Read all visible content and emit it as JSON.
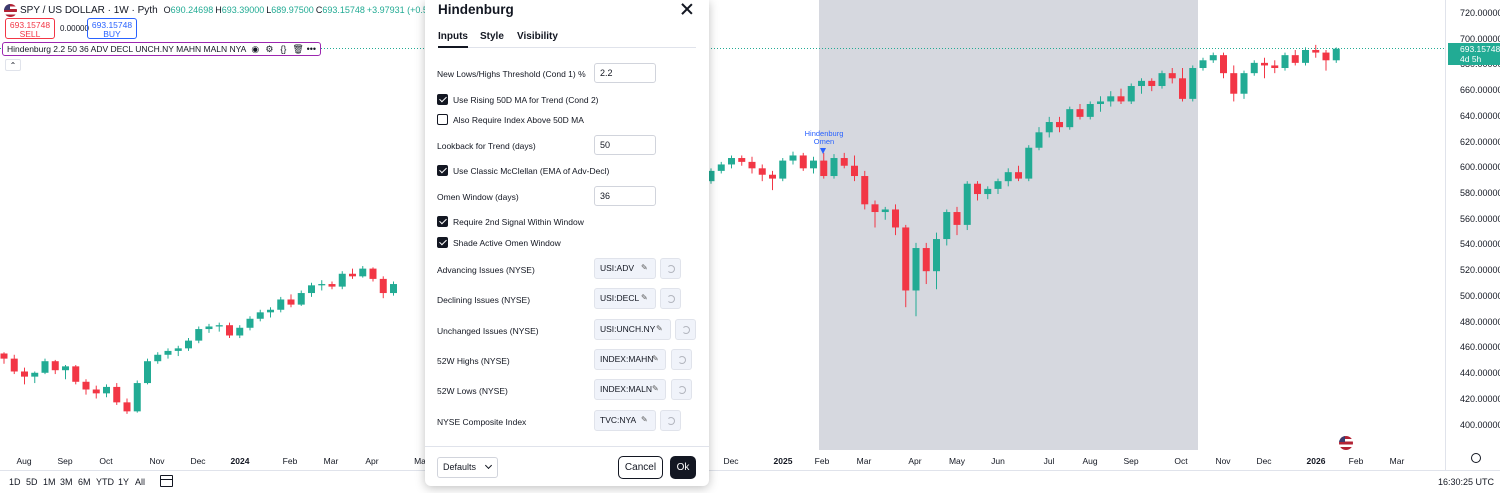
{
  "symbol": {
    "title": "SPY / US DOLLAR · 1W · Pyth",
    "open": "690.24698",
    "high": "693.39000",
    "low": "689.97500",
    "close": "693.15748",
    "change": "+3.97931 (+0.58%)"
  },
  "trade": {
    "sell_price": "693.15748",
    "sell_label": "SELL",
    "spread": "0.00000",
    "buy_price": "693.15748",
    "buy_label": "BUY"
  },
  "indicator": {
    "legend": "Hindenburg 2.2 50 36 ADV DECL UNCH.NY MAHN MALN NYA"
  },
  "annotation": {
    "omen_line1": "Hindenburg",
    "omen_line2": "Omen"
  },
  "price_scale": {
    "ticks": [
      "720.00000",
      "700.00000",
      "680.00000",
      "660.00000",
      "640.00000",
      "620.00000",
      "600.00000",
      "580.00000",
      "560.00000",
      "540.00000",
      "520.00000",
      "500.00000",
      "480.00000",
      "460.00000",
      "440.00000",
      "420.00000",
      "400.00000"
    ],
    "last_price": "693.15748",
    "countdown": "4d 5h"
  },
  "time_axis": {
    "ticks": [
      {
        "label": "Aug",
        "bold": false
      },
      {
        "label": "Sep",
        "bold": false
      },
      {
        "label": "Oct",
        "bold": false
      },
      {
        "label": "Nov",
        "bold": false
      },
      {
        "label": "Dec",
        "bold": false
      },
      {
        "label": "2024",
        "bold": true
      },
      {
        "label": "Feb",
        "bold": false
      },
      {
        "label": "Mar",
        "bold": false
      },
      {
        "label": "Apr",
        "bold": false
      },
      {
        "label": "Ma",
        "bold": false
      },
      {
        "label": "Dec",
        "bold": false
      },
      {
        "label": "2025",
        "bold": true
      },
      {
        "label": "Feb",
        "bold": false
      },
      {
        "label": "Mar",
        "bold": false
      },
      {
        "label": "Apr",
        "bold": false
      },
      {
        "label": "May",
        "bold": false
      },
      {
        "label": "Jun",
        "bold": false
      },
      {
        "label": "Jul",
        "bold": false
      },
      {
        "label": "Aug",
        "bold": false
      },
      {
        "label": "Sep",
        "bold": false
      },
      {
        "label": "Oct",
        "bold": false
      },
      {
        "label": "Nov",
        "bold": false
      },
      {
        "label": "Dec",
        "bold": false
      },
      {
        "label": "2026",
        "bold": true
      },
      {
        "label": "Feb",
        "bold": false
      },
      {
        "label": "Mar",
        "bold": false
      }
    ]
  },
  "bottom_bar": {
    "ranges": [
      "1D",
      "5D",
      "1M",
      "3M",
      "6M",
      "YTD",
      "1Y",
      "All"
    ],
    "clock": "16:30:25 UTC"
  },
  "colors": {
    "up": "#22ab94",
    "down": "#f23645",
    "shade": "#d1d4dc",
    "accent": "#2962ff"
  },
  "dialog": {
    "title": "Hindenburg",
    "tabs": [
      "Inputs",
      "Style",
      "Visibility"
    ],
    "inputs": {
      "threshold_label": "New Lows/Highs Threshold (Cond 1) %",
      "threshold_value": "2.2",
      "rising_ma_label": "Use Rising 50D MA for Trend (Cond 2)",
      "rising_ma_checked": true,
      "above_ma_label": "Also Require Index Above 50D MA",
      "above_ma_checked": false,
      "lookback_label": "Lookback for Trend (days)",
      "lookback_value": "50",
      "mcclellan_label": "Use Classic McClellan (EMA of Adv-Decl)",
      "mcclellan_checked": true,
      "omen_window_label": "Omen Window (days)",
      "omen_window_value": "36",
      "second_signal_label": "Require 2nd Signal Within Window",
      "second_signal_checked": true,
      "shade_label": "Shade Active Omen Window",
      "shade_checked": true,
      "symbols": [
        {
          "label": "Advancing Issues (NYSE)",
          "value": "USI:ADV"
        },
        {
          "label": "Declining Issues (NYSE)",
          "value": "USI:DECL"
        },
        {
          "label": "Unchanged Issues (NYSE)",
          "value": "USI:UNCH.NY"
        },
        {
          "label": "52W Highs (NYSE)",
          "value": "INDEX:MAHN"
        },
        {
          "label": "52W Lows (NYSE)",
          "value": "INDEX:MALN"
        },
        {
          "label": "NYSE Composite Index",
          "value": "TVC:NYA"
        }
      ]
    },
    "footer": {
      "defaults_label": "Defaults",
      "cancel_label": "Cancel",
      "ok_label": "Ok"
    }
  },
  "chart_data": {
    "type": "candlestick",
    "interval": "1W",
    "ylim": [
      380,
      730
    ],
    "candles": [
      [
        456,
        457,
        448,
        452
      ],
      [
        452,
        455,
        440,
        442
      ],
      [
        442,
        445,
        432,
        438
      ],
      [
        438,
        442,
        433,
        441
      ],
      [
        441,
        452,
        440,
        450
      ],
      [
        450,
        451,
        440,
        443
      ],
      [
        443,
        447,
        436,
        446
      ],
      [
        446,
        447,
        432,
        434
      ],
      [
        434,
        436,
        424,
        428
      ],
      [
        428,
        431,
        421,
        425
      ],
      [
        425,
        432,
        422,
        430
      ],
      [
        430,
        433,
        416,
        418
      ],
      [
        418,
        421,
        409,
        411
      ],
      [
        411,
        435,
        410,
        433
      ],
      [
        433,
        452,
        432,
        450
      ],
      [
        450,
        457,
        448,
        455
      ],
      [
        455,
        460,
        452,
        458
      ],
      [
        458,
        462,
        454,
        460
      ],
      [
        460,
        468,
        458,
        466
      ],
      [
        466,
        477,
        464,
        475
      ],
      [
        475,
        479,
        472,
        477
      ],
      [
        477,
        480,
        473,
        478
      ],
      [
        478,
        480,
        468,
        470
      ],
      [
        470,
        478,
        468,
        476
      ],
      [
        476,
        485,
        474,
        483
      ],
      [
        483,
        490,
        481,
        488
      ],
      [
        488,
        492,
        484,
        490
      ],
      [
        490,
        500,
        488,
        498
      ],
      [
        498,
        502,
        492,
        494
      ],
      [
        494,
        505,
        493,
        503
      ],
      [
        503,
        511,
        500,
        509
      ],
      [
        509,
        513,
        505,
        510
      ],
      [
        510,
        512,
        506,
        508
      ],
      [
        508,
        520,
        506,
        518
      ],
      [
        518,
        522,
        514,
        516
      ],
      [
        516,
        524,
        515,
        522
      ],
      [
        522,
        523,
        512,
        514
      ],
      [
        514,
        516,
        499,
        503
      ],
      [
        503,
        512,
        501,
        510
      ]
    ]
  }
}
